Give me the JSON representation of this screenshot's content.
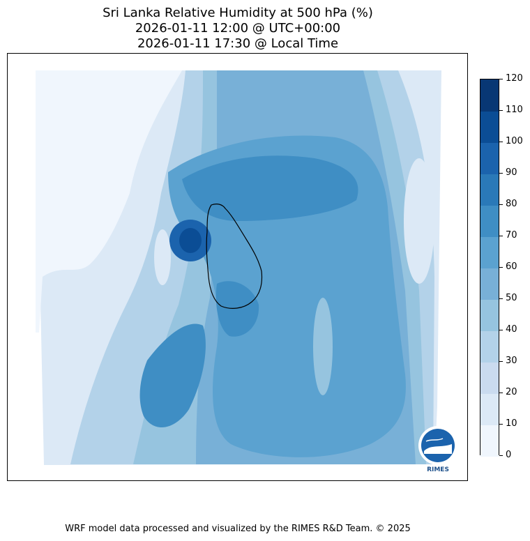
{
  "title": {
    "line1": "Sri Lanka Relative Humidity at 500 hPa (%)",
    "line2": "2026-01-11 12:00 @ UTC+00:00",
    "line3": "2026-01-11 17:30 @ Local Time"
  },
  "colorbar": {
    "ticks": [
      "0",
      "10",
      "20",
      "30",
      "40",
      "50",
      "60",
      "70",
      "80",
      "90",
      "100",
      "110",
      "120"
    ],
    "colors": [
      "#f0f6fd",
      "#dce9f6",
      "#cadbef",
      "#b3d2e9",
      "#96c4df",
      "#78b0d7",
      "#5ba2d0",
      "#3f8ec4",
      "#2a79b8",
      "#1b63ad",
      "#0b4d95",
      "#083774"
    ]
  },
  "logo": {
    "text": "RIMES",
    "icon": "rimes-logo-icon"
  },
  "footer": "WRF model data processed and visualized by the RIMES R&D Team. © 2025"
}
